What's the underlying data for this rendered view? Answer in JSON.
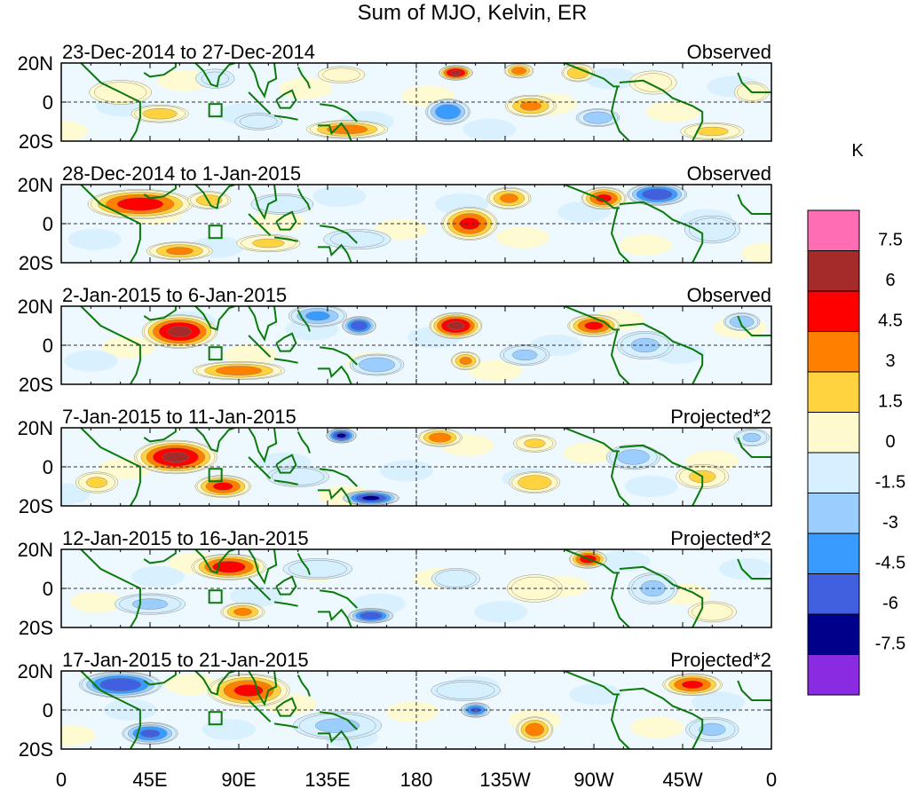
{
  "chart_data": {
    "type": "heatmap",
    "title": "Sum of MJO, Kelvin, ER",
    "xlabel": "",
    "ylabel": "",
    "x_ticks": [
      "0",
      "45E",
      "90E",
      "135E",
      "180",
      "135W",
      "90W",
      "45W",
      "0"
    ],
    "y_ticks": [
      "20N",
      "0",
      "20S"
    ],
    "colorbar": {
      "units": "K",
      "levels": [
        "7.5",
        "6",
        "4.5",
        "3",
        "1.5",
        "0",
        "-1.5",
        "-3",
        "-4.5",
        "-6",
        "-7.5"
      ],
      "colors": [
        "#ff6eb4",
        "#a52a2a",
        "#ff0000",
        "#ff7f00",
        "#ffd23f",
        "#fffacd",
        "#d6f0ff",
        "#9ccdff",
        "#3a9bff",
        "#4060e0",
        "#00008b",
        "#8a2be2"
      ]
    },
    "panels": [
      {
        "date_range": "23-Dec-2014 to 27-Dec-2014",
        "kind": "Observed",
        "blobs": [
          {
            "lon": 30,
            "lat": 5,
            "v": 2.5,
            "rx": 18,
            "ry": 7
          },
          {
            "lon": 50,
            "lat": -6,
            "v": 3.5,
            "rx": 16,
            "ry": 5
          },
          {
            "lon": 78,
            "lat": 12,
            "v": -1.5,
            "rx": 12,
            "ry": 6
          },
          {
            "lon": 100,
            "lat": -10,
            "v": -2,
            "rx": 14,
            "ry": 5
          },
          {
            "lon": 145,
            "lat": -14,
            "v": 5,
            "rx": 22,
            "ry": 5
          },
          {
            "lon": 142,
            "lat": 14,
            "v": 2,
            "rx": 14,
            "ry": 5
          },
          {
            "lon": 196,
            "lat": -5,
            "v": -5.5,
            "rx": 12,
            "ry": 7
          },
          {
            "lon": 200,
            "lat": 15,
            "v": 7.5,
            "rx": 9,
            "ry": 4
          },
          {
            "lon": 232,
            "lat": 16,
            "v": 5,
            "rx": 8,
            "ry": 4
          },
          {
            "lon": 238,
            "lat": -2,
            "v": 4.5,
            "rx": 14,
            "ry": 6
          },
          {
            "lon": 262,
            "lat": 15,
            "v": 4,
            "rx": 9,
            "ry": 5
          },
          {
            "lon": 272,
            "lat": -8,
            "v": -4,
            "rx": 12,
            "ry": 5
          },
          {
            "lon": 300,
            "lat": 10,
            "v": 2,
            "rx": 14,
            "ry": 7
          },
          {
            "lon": 330,
            "lat": -15,
            "v": 3,
            "rx": 18,
            "ry": 5
          },
          {
            "lon": 350,
            "lat": 5,
            "v": 2.5,
            "rx": 10,
            "ry": 6
          }
        ]
      },
      {
        "date_range": "28-Dec-2014 to 1-Jan-2015",
        "kind": "Observed",
        "blobs": [
          {
            "lon": 40,
            "lat": 10,
            "v": 6.5,
            "rx": 28,
            "ry": 8
          },
          {
            "lon": 75,
            "lat": 12,
            "v": 3.5,
            "rx": 12,
            "ry": 5
          },
          {
            "lon": 60,
            "lat": -14,
            "v": 4.5,
            "rx": 18,
            "ry": 5
          },
          {
            "lon": 105,
            "lat": -10,
            "v": 3,
            "rx": 18,
            "ry": 5
          },
          {
            "lon": 112,
            "lat": 10,
            "v": -2.5,
            "rx": 18,
            "ry": 6
          },
          {
            "lon": 150,
            "lat": -8,
            "v": -2,
            "rx": 20,
            "ry": 6
          },
          {
            "lon": 207,
            "lat": 0,
            "v": 6,
            "rx": 15,
            "ry": 9
          },
          {
            "lon": 227,
            "lat": 13,
            "v": 4.5,
            "rx": 12,
            "ry": 6
          },
          {
            "lon": 275,
            "lat": 13,
            "v": 6,
            "rx": 12,
            "ry": 6
          },
          {
            "lon": 302,
            "lat": 15,
            "v": -7,
            "rx": 16,
            "ry": 6
          },
          {
            "lon": 330,
            "lat": -3,
            "v": -2.5,
            "rx": 16,
            "ry": 8
          }
        ]
      },
      {
        "date_range": "2-Jan-2015 to 6-Jan-2015",
        "kind": "Observed",
        "blobs": [
          {
            "lon": 60,
            "lat": 7,
            "v": 7.5,
            "rx": 20,
            "ry": 9
          },
          {
            "lon": 90,
            "lat": -13,
            "v": 5,
            "rx": 25,
            "ry": 5
          },
          {
            "lon": 130,
            "lat": 15,
            "v": -4.5,
            "rx": 16,
            "ry": 6
          },
          {
            "lon": 151,
            "lat": 10,
            "v": -7,
            "rx": 9,
            "ry": 5
          },
          {
            "lon": 160,
            "lat": -10,
            "v": -4,
            "rx": 15,
            "ry": 6
          },
          {
            "lon": 200,
            "lat": 10,
            "v": 7.5,
            "rx": 14,
            "ry": 7
          },
          {
            "lon": 205,
            "lat": -8,
            "v": 4.5,
            "rx": 8,
            "ry": 5
          },
          {
            "lon": 235,
            "lat": -5,
            "v": -3,
            "rx": 14,
            "ry": 6
          },
          {
            "lon": 270,
            "lat": 10,
            "v": 6,
            "rx": 14,
            "ry": 6
          },
          {
            "lon": 296,
            "lat": 0,
            "v": -3,
            "rx": 16,
            "ry": 8
          },
          {
            "lon": 345,
            "lat": 12,
            "v": -4,
            "rx": 10,
            "ry": 5
          }
        ]
      },
      {
        "date_range": "7-Jan-2015 to 11-Jan-2015",
        "kind": "Projected*2",
        "blobs": [
          {
            "lon": 58,
            "lat": 5,
            "v": 7.5,
            "rx": 22,
            "ry": 9
          },
          {
            "lon": 82,
            "lat": -10,
            "v": 6,
            "rx": 15,
            "ry": 6
          },
          {
            "lon": 18,
            "lat": -8,
            "v": 3,
            "rx": 12,
            "ry": 6
          },
          {
            "lon": 120,
            "lat": -5,
            "v": -2.5,
            "rx": 18,
            "ry": 6
          },
          {
            "lon": 142,
            "lat": 16,
            "v": -7.5,
            "rx": 8,
            "ry": 4
          },
          {
            "lon": 157,
            "lat": -16,
            "v": -7.5,
            "rx": 15,
            "ry": 4
          },
          {
            "lon": 192,
            "lat": 15,
            "v": 5,
            "rx": 12,
            "ry": 5
          },
          {
            "lon": 240,
            "lat": -8,
            "v": 4,
            "rx": 14,
            "ry": 6
          },
          {
            "lon": 240,
            "lat": 12,
            "v": 3,
            "rx": 12,
            "ry": 5
          },
          {
            "lon": 290,
            "lat": 5,
            "v": -3.5,
            "rx": 15,
            "ry": 7
          },
          {
            "lon": 325,
            "lat": -5,
            "v": 3,
            "rx": 15,
            "ry": 7
          },
          {
            "lon": 350,
            "lat": 15,
            "v": -3,
            "rx": 10,
            "ry": 5
          }
        ]
      },
      {
        "date_range": "12-Jan-2015 to 16-Jan-2015",
        "kind": "Projected*2",
        "blobs": [
          {
            "lon": 85,
            "lat": 11,
            "v": 6.5,
            "rx": 20,
            "ry": 7
          },
          {
            "lon": 45,
            "lat": -8,
            "v": -3,
            "rx": 20,
            "ry": 6
          },
          {
            "lon": 92,
            "lat": -12,
            "v": 4.5,
            "rx": 12,
            "ry": 5
          },
          {
            "lon": 130,
            "lat": 10,
            "v": -2.5,
            "rx": 20,
            "ry": 6
          },
          {
            "lon": 157,
            "lat": -14,
            "v": -7,
            "rx": 12,
            "ry": 4
          },
          {
            "lon": 200,
            "lat": 5,
            "v": -2.5,
            "rx": 14,
            "ry": 6
          },
          {
            "lon": 240,
            "lat": 0,
            "v": 2.5,
            "rx": 16,
            "ry": 8
          },
          {
            "lon": 267,
            "lat": 15,
            "v": 6.5,
            "rx": 10,
            "ry": 5
          },
          {
            "lon": 300,
            "lat": 0,
            "v": -3,
            "rx": 14,
            "ry": 9
          },
          {
            "lon": 330,
            "lat": -12,
            "v": 2.5,
            "rx": 14,
            "ry": 6
          }
        ]
      },
      {
        "date_range": "17-Jan-2015 to 21-Jan-2015",
        "kind": "Projected*2",
        "blobs": [
          {
            "lon": 30,
            "lat": 13,
            "v": -7,
            "rx": 22,
            "ry": 7
          },
          {
            "lon": 45,
            "lat": -12,
            "v": -6,
            "rx": 15,
            "ry": 6
          },
          {
            "lon": 95,
            "lat": 10,
            "v": 6,
            "rx": 22,
            "ry": 9
          },
          {
            "lon": 140,
            "lat": -8,
            "v": -3,
            "rx": 25,
            "ry": 8
          },
          {
            "lon": 205,
            "lat": 10,
            "v": -2.5,
            "rx": 20,
            "ry": 6
          },
          {
            "lon": 210,
            "lat": 0,
            "v": -6,
            "rx": 8,
            "ry": 4
          },
          {
            "lon": 240,
            "lat": -10,
            "v": 5,
            "rx": 10,
            "ry": 7
          },
          {
            "lon": 320,
            "lat": 13,
            "v": 6,
            "rx": 16,
            "ry": 6
          },
          {
            "lon": 330,
            "lat": -10,
            "v": -3,
            "rx": 15,
            "ry": 7
          }
        ]
      }
    ]
  }
}
